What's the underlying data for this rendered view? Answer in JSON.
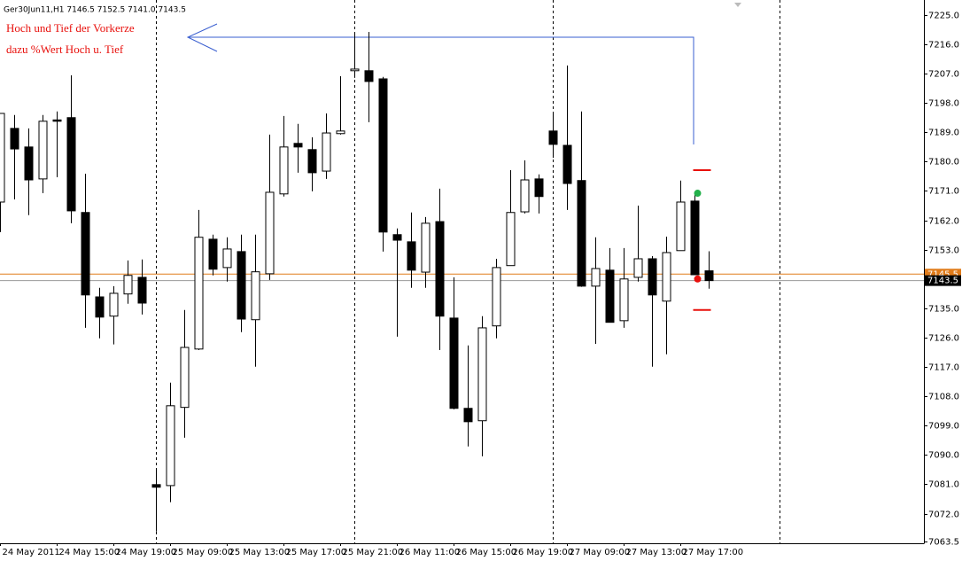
{
  "chart_data": {
    "type": "candlestick",
    "title": "Ger30Jun11,H1  7146.5 7152.5 7141.0 7143.5",
    "annotations": [
      "Hoch und Tief der Vorkerze",
      "dazu %Wert Hoch u. Tief"
    ],
    "categories": [
      "24 May 2011",
      null,
      null,
      null,
      "24 May 15:00",
      null,
      null,
      null,
      "24 May 19:00",
      null,
      null,
      null,
      "25 May 09:00",
      null,
      null,
      null,
      "25 May 13:00",
      null,
      null,
      null,
      "25 May 17:00",
      null,
      null,
      null,
      "25 May 21:00",
      null,
      null,
      null,
      "26 May 11:00",
      null,
      null,
      null,
      "26 May 15:00",
      null,
      null,
      null,
      "26 May 19:00",
      null,
      null,
      null,
      "27 May 09:00",
      null,
      null,
      null,
      "27 May 13:00",
      null,
      null,
      null,
      "27 May 17:00",
      null,
      null
    ],
    "open": [
      7167.6,
      7190.2,
      7184.5,
      7174.7,
      7192.8,
      7193.5,
      7164.4,
      7138.5,
      7132.6,
      7139.4,
      7144.5,
      7080.9,
      7080.6,
      7104.6,
      7122.5,
      7156.2,
      7147.5,
      7152.4,
      7131.5,
      7145.6,
      7170.1,
      7185.6,
      7183.7,
      7177.1,
      7188.6,
      7207.9,
      7207.9,
      7205.4,
      7157.6,
      7155.4,
      7146.1,
      7161.6,
      7132.0,
      7104.3,
      7100.5,
      7129.6,
      7148.1,
      7164.6,
      7174.7,
      7189.4,
      7185.0,
      7174.2,
      7141.8,
      7146.7,
      7131.2,
      7144.5,
      7150.2,
      7137.2,
      7152.7,
      7167.9,
      7146.5
    ],
    "high": [
      7194.8,
      7194.3,
      7190.2,
      7194.3,
      7195.4,
      7206.5,
      7176.3,
      7141.3,
      7141.8,
      7149.7,
      7150.0,
      7085.5,
      7112.2,
      7134.5,
      7165.2,
      7157.6,
      7156.8,
      7157.6,
      7157.6,
      7188.3,
      7194.0,
      7191.6,
      7187.5,
      7194.8,
      7206.2,
      7219.6,
      7219.8,
      7206.0,
      7159.5,
      7164.4,
      7163.0,
      7171.7,
      7144.5,
      7123.6,
      7132.6,
      7150.2,
      7177.4,
      7180.4,
      7176.1,
      7194.8,
      7209.5,
      7195.4,
      7156.8,
      7153.5,
      7153.5,
      7166.5,
      7151.0,
      7157.0,
      7174.2,
      7170.3,
      7152.5
    ],
    "low": [
      7158.4,
      7168.4,
      7163.6,
      7170.3,
      7175.2,
      7161.1,
      7129.0,
      7125.8,
      7123.9,
      7136.4,
      7133.1,
      7066.5,
      7075.5,
      7095.3,
      7122.2,
      7145.1,
      7143.2,
      7127.7,
      7117.1,
      7143.7,
      7169.3,
      7176.6,
      7170.9,
      7174.7,
      7188.3,
      7205.7,
      7192.1,
      7152.4,
      7126.3,
      7141.3,
      7141.3,
      7122.2,
      7104.0,
      7092.6,
      7089.6,
      7125.8,
      7148.1,
      7164.1,
      7164.1,
      7181.2,
      7165.2,
      7141.6,
      7124.1,
      7130.7,
      7129.0,
      7143.2,
      7117.1,
      7120.9,
      7152.7,
      7145.3,
      7141.0
    ],
    "close": [
      7194.8,
      7183.9,
      7174.4,
      7192.4,
      7192.4,
      7164.9,
      7139.1,
      7132.3,
      7139.6,
      7145.1,
      7136.6,
      7080.1,
      7105.1,
      7123.0,
      7156.8,
      7147.0,
      7153.2,
      7131.7,
      7146.2,
      7170.6,
      7184.5,
      7184.5,
      7176.6,
      7188.8,
      7189.4,
      7208.4,
      7204.6,
      7158.4,
      7155.9,
      7146.7,
      7161.1,
      7132.6,
      7104.3,
      7100.2,
      7129.0,
      7147.5,
      7164.4,
      7174.4,
      7169.3,
      7185.3,
      7173.3,
      7141.8,
      7147.2,
      7130.7,
      7144.0,
      7150.2,
      7139.1,
      7152.1,
      7167.6,
      7145.3,
      7143.5
    ],
    "ylim": [
      7062.9,
      7229.6
    ],
    "yticks": [
      {
        "value": 7225,
        "label": "7225.0"
      },
      {
        "value": 7216,
        "label": "7216.0"
      },
      {
        "value": 7207,
        "label": "7207.0"
      },
      {
        "value": 7198,
        "label": "7198.0"
      },
      {
        "value": 7189,
        "label": "7189.0"
      },
      {
        "value": 7180,
        "label": "7180.0"
      },
      {
        "value": 7171,
        "label": "7171.0"
      },
      {
        "value": 7162,
        "label": "7162.0"
      },
      {
        "value": 7153,
        "label": "7153.0"
      },
      {
        "value": 7135,
        "label": "7135.0"
      },
      {
        "value": 7126,
        "label": "7126.0"
      },
      {
        "value": 7117,
        "label": "7117.0"
      },
      {
        "value": 7108,
        "label": "7108.0"
      },
      {
        "value": 7099,
        "label": "7099.0"
      },
      {
        "value": 7090,
        "label": "7090.0"
      },
      {
        "value": 7081,
        "label": "7081.0"
      },
      {
        "value": 7072,
        "label": "7072.0"
      },
      7063.5
    ],
    "ask": 7145.5,
    "bid": 7143.5,
    "indicator": {
      "levels": [
        7177.4,
        7134.5
      ],
      "level_color": "#e8100c",
      "dots": [
        {
          "value": 7170.3,
          "color": "#22b04a"
        },
        {
          "value": 7144.0,
          "color": "#e8100c"
        }
      ]
    },
    "bull_color": "#ffffff",
    "bear_color": "#000000"
  }
}
